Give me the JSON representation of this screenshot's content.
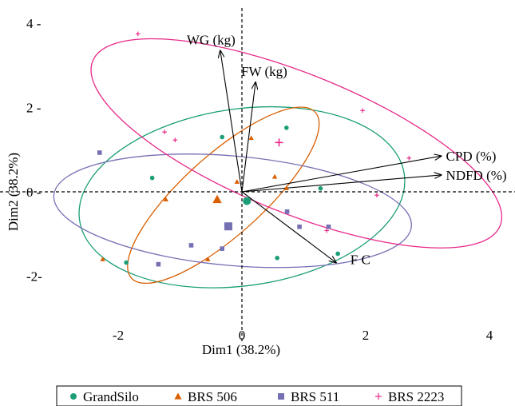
{
  "chart_data": {
    "type": "scatter",
    "subtype": "pca-biplot",
    "title": "",
    "xlabel": "Dim1 (38.2%)",
    "ylabel": "Dim2 (38.2%)",
    "xlim": [
      -3.2,
      4.4
    ],
    "ylim": [
      -2.9,
      4.2
    ],
    "x_ticks": [
      -2,
      0,
      2,
      4
    ],
    "y_ticks": [
      -2,
      0,
      2,
      4
    ],
    "x_tick_labels": [
      "-2",
      "0",
      "2",
      "4"
    ],
    "y_tick_labels": [
      "-2-",
      "0 -",
      "2 -",
      "4 -"
    ],
    "grid": false,
    "reference_lines": "dashed at x=0 and y=0",
    "legend_position": "bottom",
    "variables": [
      {
        "label": "WG (kg)",
        "x": -0.35,
        "y": 3.35
      },
      {
        "label": "FW (kg)",
        "x": 0.22,
        "y": 2.6
      },
      {
        "label": "CPD (%)",
        "x": 3.22,
        "y": 0.85
      },
      {
        "label": "NDFD (%)",
        "x": 3.22,
        "y": 0.4
      },
      {
        "label": "F C",
        "x": 1.52,
        "y": -1.68
      }
    ],
    "series": [
      {
        "name": "GrandSilo",
        "marker": "circle",
        "color": "#1b9e77",
        "points": [
          [
            0.72,
            1.52
          ],
          [
            -0.32,
            1.3
          ],
          [
            -1.45,
            0.33
          ],
          [
            1.27,
            0.08
          ],
          [
            -1.87,
            -1.68
          ],
          [
            0.57,
            -1.57
          ],
          [
            1.55,
            -1.47
          ]
        ],
        "centroid": [
          0.08,
          -0.22
        ],
        "ellipse": {
          "cx": 0.0,
          "cy": -0.13,
          "rx": 2.65,
          "ry": 2.1,
          "angle": 8
        }
      },
      {
        "name": "BRS 506",
        "marker": "triangle",
        "color": "#d95f02",
        "points": [
          [
            0.15,
            1.28
          ],
          [
            0.53,
            0.36
          ],
          [
            -0.08,
            0.24
          ],
          [
            0.72,
            0.09
          ],
          [
            -1.23,
            -0.18
          ],
          [
            -0.55,
            -1.6
          ],
          [
            -2.25,
            -1.6
          ]
        ],
        "centroid": [
          -0.4,
          -0.18
        ],
        "ellipse": {
          "cx": -0.3,
          "cy": -0.08,
          "rx": 2.0,
          "ry": 0.95,
          "angle": 42
        }
      },
      {
        "name": "BRS 511",
        "marker": "square",
        "color": "#7570b3",
        "points": [
          [
            -2.3,
            0.93
          ],
          [
            0.73,
            -0.47
          ],
          [
            0.93,
            -0.83
          ],
          [
            1.4,
            -0.83
          ],
          [
            -0.82,
            -1.27
          ],
          [
            -0.32,
            -1.35
          ],
          [
            -1.35,
            -1.72
          ]
        ],
        "centroid": [
          -0.22,
          -0.82
        ],
        "ellipse": {
          "cx": -0.15,
          "cy": -0.45,
          "rx": 2.9,
          "ry": 1.3,
          "angle": -5
        }
      },
      {
        "name": "BRS 2223",
        "marker": "plus",
        "color": "#e7298a",
        "points": [
          [
            -1.68,
            3.75
          ],
          [
            1.95,
            1.93
          ],
          [
            -1.25,
            1.42
          ],
          [
            -1.08,
            1.23
          ],
          [
            2.7,
            0.8
          ],
          [
            2.18,
            -0.08
          ],
          [
            1.37,
            -0.92
          ]
        ],
        "centroid": [
          0.6,
          1.17
        ],
        "ellipse": {
          "cx": 0.88,
          "cy": 1.15,
          "rx": 3.55,
          "ry": 1.65,
          "angle": -22
        }
      }
    ]
  }
}
